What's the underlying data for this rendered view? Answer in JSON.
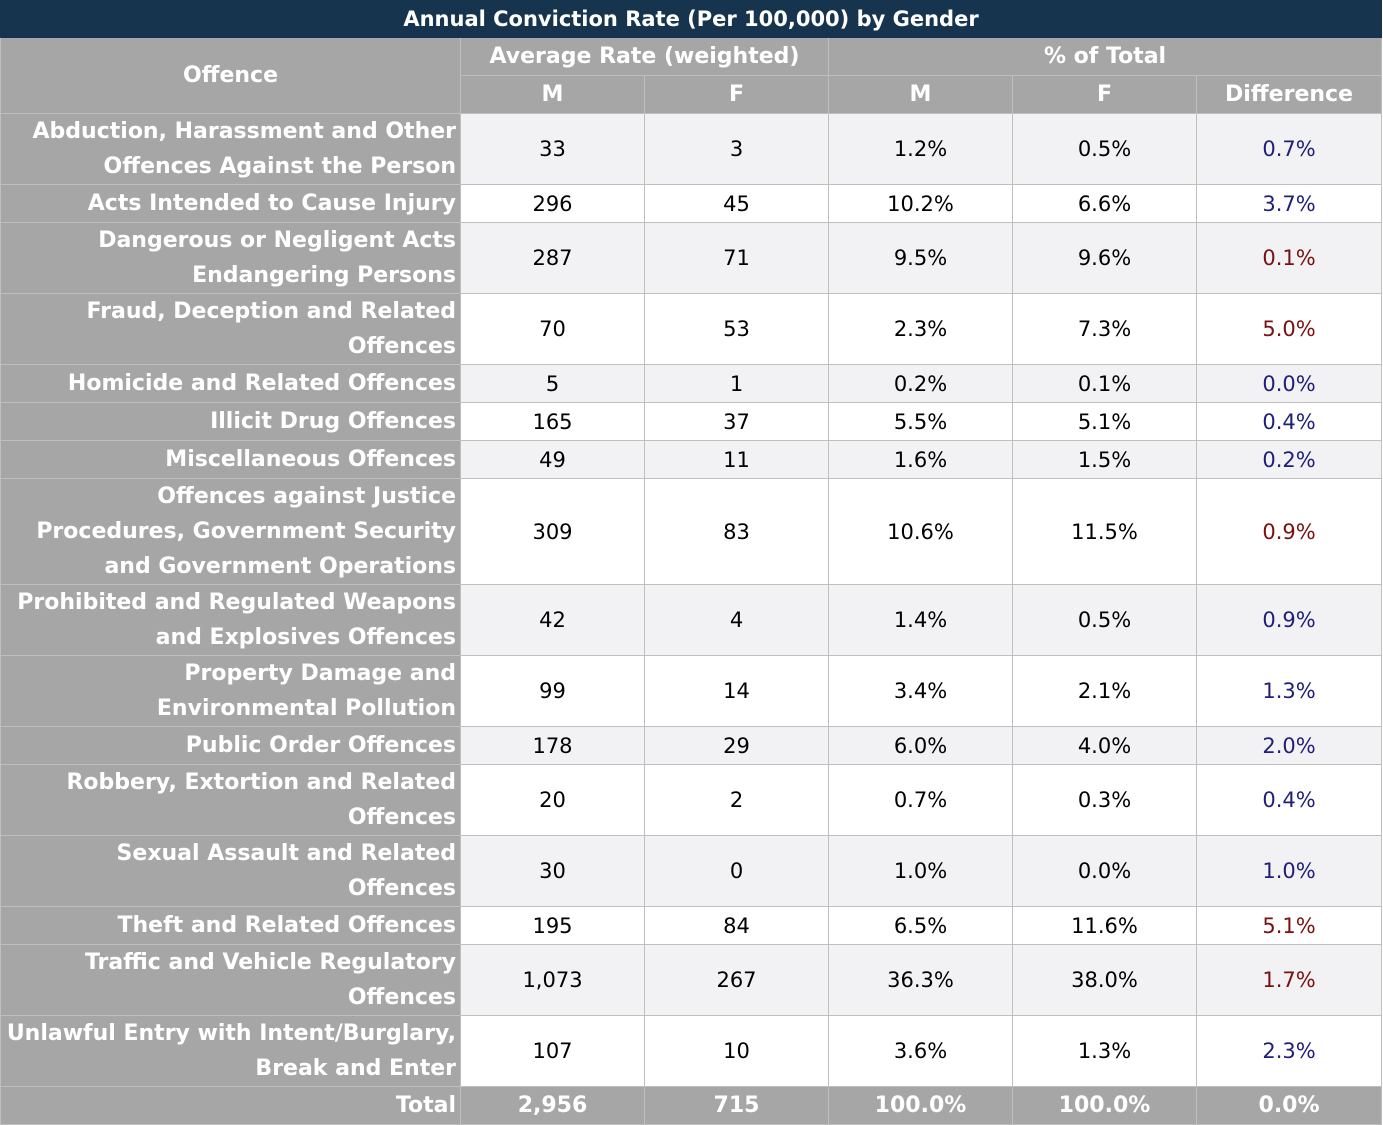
{
  "title": "Annual Conviction Rate (Per 100,000) by Gender",
  "headers": {
    "offence": "Offence",
    "avg_rate": "Average Rate (weighted)",
    "pct_total": "% of Total",
    "m": "M",
    "f": "F",
    "difference": "Difference"
  },
  "colors": {
    "title_bg": "#17344f",
    "header_bg": "#a6a6a6",
    "diff_positive": "#1f1f7a",
    "diff_negative": "#7a1010"
  },
  "rows": [
    {
      "offence": "Abduction, Harassment and Other Offences Against the Person",
      "m_rate": "33",
      "f_rate": "3",
      "m_pct": "1.2%",
      "f_pct": "0.5%",
      "diff": "0.7%"
    },
    {
      "offence": "Acts Intended to Cause Injury",
      "m_rate": "296",
      "f_rate": "45",
      "m_pct": "10.2%",
      "f_pct": "6.6%",
      "diff": "3.7%"
    },
    {
      "offence": "Dangerous or Negligent Acts Endangering Persons",
      "m_rate": "287",
      "f_rate": "71",
      "m_pct": "9.5%",
      "f_pct": "9.6%",
      "diff": "0.1%"
    },
    {
      "offence": "Fraud, Deception and Related Offences",
      "m_rate": "70",
      "f_rate": "53",
      "m_pct": "2.3%",
      "f_pct": "7.3%",
      "diff": "5.0%"
    },
    {
      "offence": "Homicide and Related Offences",
      "m_rate": "5",
      "f_rate": "1",
      "m_pct": "0.2%",
      "f_pct": "0.1%",
      "diff": "0.0%"
    },
    {
      "offence": "Illicit Drug Offences",
      "m_rate": "165",
      "f_rate": "37",
      "m_pct": "5.5%",
      "f_pct": "5.1%",
      "diff": "0.4%"
    },
    {
      "offence": "Miscellaneous Offences",
      "m_rate": "49",
      "f_rate": "11",
      "m_pct": "1.6%",
      "f_pct": "1.5%",
      "diff": "0.2%"
    },
    {
      "offence": "Offences against Justice Procedures, Government Security and Government Operations",
      "m_rate": "309",
      "f_rate": "83",
      "m_pct": "10.6%",
      "f_pct": "11.5%",
      "diff": "0.9%"
    },
    {
      "offence": "Prohibited and Regulated Weapons and Explosives Offences",
      "m_rate": "42",
      "f_rate": "4",
      "m_pct": "1.4%",
      "f_pct": "0.5%",
      "diff": "0.9%"
    },
    {
      "offence": "Property Damage and Environmental Pollution",
      "m_rate": "99",
      "f_rate": "14",
      "m_pct": "3.4%",
      "f_pct": "2.1%",
      "diff": "1.3%"
    },
    {
      "offence": "Public Order Offences",
      "m_rate": "178",
      "f_rate": "29",
      "m_pct": "6.0%",
      "f_pct": "4.0%",
      "diff": "2.0%"
    },
    {
      "offence": "Robbery, Extortion and Related Offences",
      "m_rate": "20",
      "f_rate": "2",
      "m_pct": "0.7%",
      "f_pct": "0.3%",
      "diff": "0.4%"
    },
    {
      "offence": "Sexual Assault and Related Offences",
      "m_rate": "30",
      "f_rate": "0",
      "m_pct": "1.0%",
      "f_pct": "0.0%",
      "diff": "1.0%"
    },
    {
      "offence": "Theft and Related Offences",
      "m_rate": "195",
      "f_rate": "84",
      "m_pct": "6.5%",
      "f_pct": "11.6%",
      "diff": "5.1%"
    },
    {
      "offence": "Traffic and Vehicle Regulatory Offences",
      "m_rate": "1,073",
      "f_rate": "267",
      "m_pct": "36.3%",
      "f_pct": "38.0%",
      "diff": "1.7%"
    },
    {
      "offence": "Unlawful Entry with Intent/Burglary, Break and Enter",
      "m_rate": "107",
      "f_rate": "10",
      "m_pct": "3.6%",
      "f_pct": "1.3%",
      "diff": "2.3%"
    }
  ],
  "total": {
    "label": "Total",
    "m_rate": "2,956",
    "f_rate": "715",
    "m_pct": "100.0%",
    "f_pct": "100.0%",
    "diff": "0.0%"
  }
}
